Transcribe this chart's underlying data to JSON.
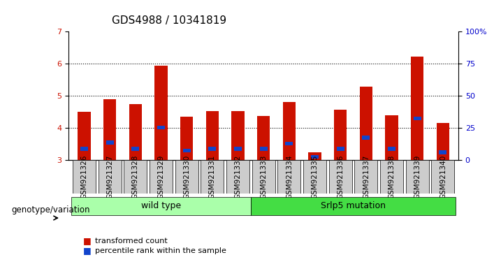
{
  "title": "GDS4988 / 10341819",
  "samples": [
    "GSM921326",
    "GSM921327",
    "GSM921328",
    "GSM921329",
    "GSM921330",
    "GSM921331",
    "GSM921332",
    "GSM921333",
    "GSM921334",
    "GSM921335",
    "GSM921336",
    "GSM921337",
    "GSM921338",
    "GSM921339",
    "GSM921340"
  ],
  "transformed_count": [
    4.5,
    4.9,
    4.75,
    5.93,
    4.35,
    4.52,
    4.52,
    4.38,
    4.82,
    3.25,
    4.57,
    5.28,
    4.4,
    6.22,
    4.15
  ],
  "percentile_rank": [
    3.35,
    3.55,
    3.35,
    4.02,
    3.3,
    3.35,
    3.35,
    3.35,
    3.52,
    3.1,
    3.35,
    3.7,
    3.35,
    4.3,
    3.25
  ],
  "bar_color": "#cc1100",
  "percentile_color": "#1144cc",
  "bar_width": 0.5,
  "ylim_left": [
    3,
    7
  ],
  "ylim_right": [
    0,
    100
  ],
  "yticks_left": [
    3,
    4,
    5,
    6,
    7
  ],
  "yticks_right": [
    0,
    25,
    50,
    75,
    100
  ],
  "yticklabels_right": [
    "0",
    "25",
    "50",
    "75",
    "100%"
  ],
  "groups": [
    {
      "label": "wild type",
      "start": 0,
      "end": 7,
      "color": "#aaffaa"
    },
    {
      "label": "Srlp5 mutation",
      "start": 7,
      "end": 15,
      "color": "#44dd44"
    }
  ],
  "group_label_x": "genotype/variation",
  "legend_items": [
    {
      "label": "transformed count",
      "color": "#cc1100"
    },
    {
      "label": "percentile rank within the sample",
      "color": "#1144cc"
    }
  ],
  "background_color": "#ffffff",
  "plot_bg_color": "#ffffff",
  "tick_label_bg": "#cccccc",
  "spine_color": "#000000",
  "grid_color": "#000000",
  "title_fontsize": 11,
  "tick_fontsize": 7.5,
  "axis_label_fontsize": 9
}
